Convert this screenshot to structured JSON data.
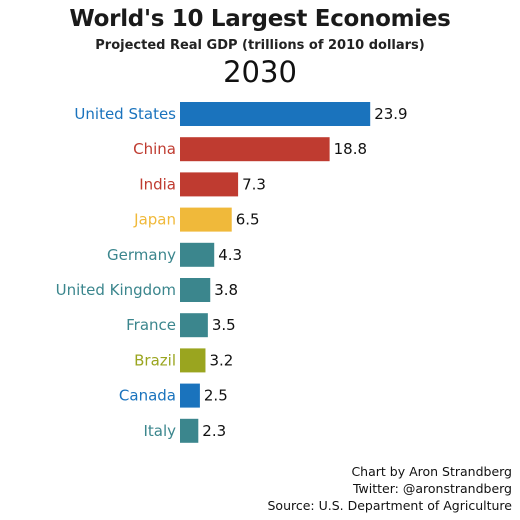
{
  "header": {
    "title": "World's 10 Largest Economies",
    "subtitle": "Projected Real GDP (trillions of 2010 dollars)",
    "year": "2030"
  },
  "chart_data": {
    "type": "bar",
    "orientation": "horizontal",
    "categories": [
      "United States",
      "China",
      "India",
      "Japan",
      "Germany",
      "United Kingdom",
      "France",
      "Brazil",
      "Canada",
      "Italy"
    ],
    "values": [
      23.9,
      18.8,
      7.3,
      6.5,
      4.3,
      3.8,
      3.5,
      3.2,
      2.5,
      2.3
    ],
    "value_labels": [
      "23.9",
      "18.8",
      "7.3",
      "6.5",
      "4.3",
      "3.8",
      "3.5",
      "3.2",
      "2.5",
      "2.3"
    ],
    "colors": [
      "#1a73bd",
      "#bf3b30",
      "#bf3b30",
      "#f0b93a",
      "#3b868d",
      "#3b868d",
      "#3b868d",
      "#9aa51f",
      "#1a73bd",
      "#3b868d"
    ],
    "xlim": [
      0,
      24
    ],
    "grid": false,
    "legend": "none"
  },
  "credits": {
    "line1": "Chart by Aron Strandberg",
    "line2": "Twitter: @aronstrandberg",
    "line3": "Source: U.S. Department of Agriculture"
  }
}
